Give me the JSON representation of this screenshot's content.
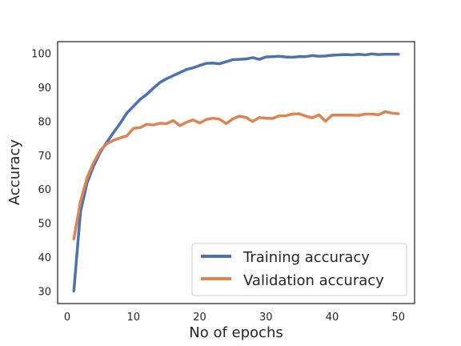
{
  "chart_data": {
    "type": "line",
    "title": "",
    "xlabel": "No of epochs",
    "ylabel": "Accuracy",
    "xlim": [
      -1.45,
      52.45
    ],
    "ylim": [
      26.5,
      103.5
    ],
    "xticks": [
      0,
      10,
      20,
      30,
      40,
      50
    ],
    "yticks": [
      30,
      40,
      50,
      60,
      70,
      80,
      90,
      100
    ],
    "xtick_labels": [
      "0",
      "10",
      "20",
      "30",
      "40",
      "50"
    ],
    "ytick_labels": [
      "30",
      "40",
      "50",
      "60",
      "70",
      "80",
      "90",
      "100"
    ],
    "grid": false,
    "legend_position": "lower-right",
    "x": [
      1,
      2,
      3,
      4,
      5,
      6,
      7,
      8,
      9,
      10,
      11,
      12,
      13,
      14,
      15,
      16,
      17,
      18,
      19,
      20,
      21,
      22,
      23,
      24,
      25,
      26,
      27,
      28,
      29,
      30,
      31,
      32,
      33,
      34,
      35,
      36,
      37,
      38,
      39,
      40,
      41,
      42,
      43,
      44,
      45,
      46,
      47,
      48,
      49,
      50
    ],
    "series": [
      {
        "name": "Training accuracy",
        "color": "#4c72b0",
        "values": [
          30.2,
          53.5,
          62.0,
          67.0,
          71.0,
          74.0,
          76.8,
          79.5,
          82.5,
          84.5,
          86.5,
          88.0,
          89.8,
          91.5,
          92.6,
          93.5,
          94.4,
          95.3,
          95.8,
          96.5,
          97.1,
          97.2,
          97.0,
          97.6,
          98.2,
          98.3,
          98.4,
          98.8,
          98.3,
          99.0,
          99.1,
          99.2,
          99.0,
          98.9,
          99.1,
          99.1,
          99.4,
          99.2,
          99.3,
          99.5,
          99.6,
          99.7,
          99.6,
          99.8,
          99.6,
          99.9,
          99.7,
          99.8,
          99.8,
          99.8
        ]
      },
      {
        "name": "Validation accuracy",
        "color": "#dd8452",
        "values": [
          45.5,
          56.5,
          63.5,
          68.0,
          71.5,
          73.5,
          74.5,
          75.2,
          75.8,
          78.0,
          78.2,
          79.2,
          79.0,
          79.5,
          79.4,
          80.3,
          78.8,
          79.8,
          80.5,
          79.6,
          80.6,
          81.0,
          80.7,
          79.4,
          80.8,
          81.6,
          81.2,
          80.0,
          81.2,
          81.0,
          80.9,
          81.7,
          81.7,
          82.2,
          82.3,
          81.6,
          81.1,
          82.0,
          80.1,
          81.9,
          81.9,
          81.9,
          81.9,
          81.8,
          82.2,
          82.2,
          82.0,
          82.9,
          82.5,
          82.3
        ]
      }
    ]
  }
}
